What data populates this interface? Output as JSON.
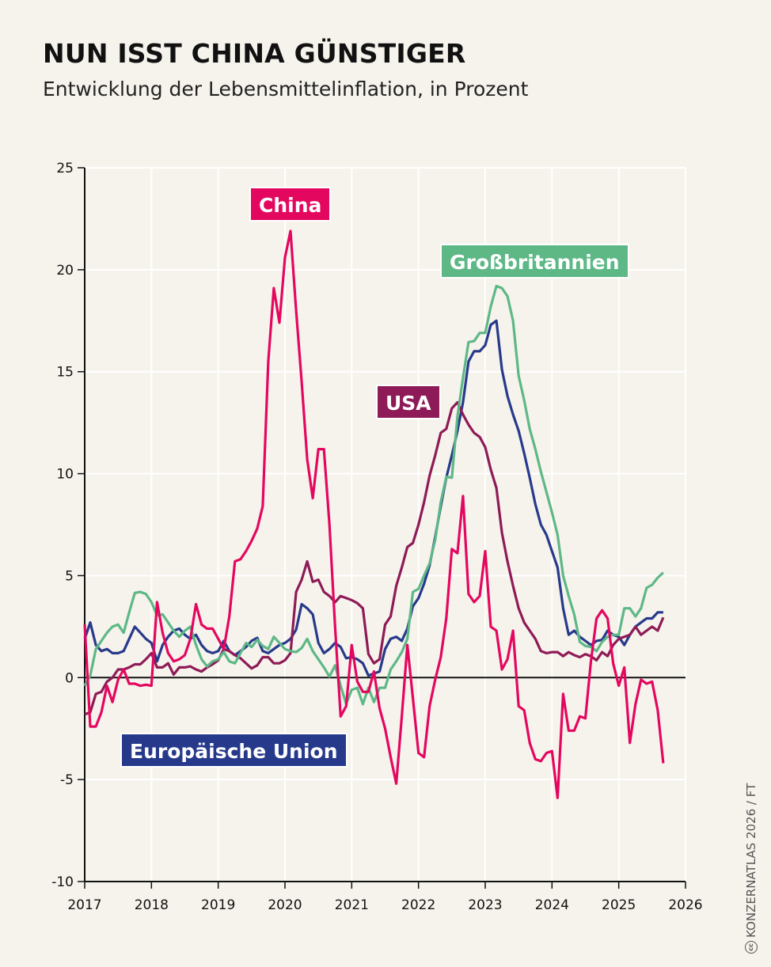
{
  "header": {
    "title": "NUN ISST CHINA GÜNSTIGER",
    "subtitle": "Entwicklung der Lebensmittelinflation, in Prozent"
  },
  "credit": {
    "icon": "creative-commons-icon",
    "text": "KONZERNATLAS 2026 / FT"
  },
  "chart_data": {
    "type": "line",
    "title": "NUN ISST CHINA GÜNSTIGER",
    "subtitle": "Entwicklung der Lebensmittelinflation, in Prozent",
    "xlabel": "",
    "ylabel": "",
    "xlim": [
      2017,
      2026
    ],
    "ylim": [
      -10,
      25
    ],
    "x_ticks": [
      "2017",
      "2018",
      "2019",
      "2020",
      "2021",
      "2022",
      "2023",
      "2024",
      "2025",
      "2026"
    ],
    "y_ticks": [
      "-10",
      "-5",
      "0",
      "5",
      "10",
      "15",
      "20",
      "25"
    ],
    "grid": true,
    "legend": "inline labels",
    "x": [
      "2017-01",
      "2017-02",
      "2017-03",
      "2017-04",
      "2017-05",
      "2017-06",
      "2017-07",
      "2017-08",
      "2017-09",
      "2017-10",
      "2017-11",
      "2017-12",
      "2018-01",
      "2018-02",
      "2018-03",
      "2018-04",
      "2018-05",
      "2018-06",
      "2018-07",
      "2018-08",
      "2018-09",
      "2018-10",
      "2018-11",
      "2018-12",
      "2019-01",
      "2019-02",
      "2019-03",
      "2019-04",
      "2019-05",
      "2019-06",
      "2019-07",
      "2019-08",
      "2019-09",
      "2019-10",
      "2019-11",
      "2019-12",
      "2020-01",
      "2020-02",
      "2020-03",
      "2020-04",
      "2020-05",
      "2020-06",
      "2020-07",
      "2020-08",
      "2020-09",
      "2020-10",
      "2020-11",
      "2020-12",
      "2021-01",
      "2021-02",
      "2021-03",
      "2021-04",
      "2021-05",
      "2021-06",
      "2021-07",
      "2021-08",
      "2021-09",
      "2021-10",
      "2021-11",
      "2021-12",
      "2022-01",
      "2022-02",
      "2022-03",
      "2022-04",
      "2022-05",
      "2022-06",
      "2022-07",
      "2022-08",
      "2022-09",
      "2022-10",
      "2022-11",
      "2022-12",
      "2023-01",
      "2023-02",
      "2023-03",
      "2023-04",
      "2023-05",
      "2023-06",
      "2023-07",
      "2023-08",
      "2023-09",
      "2023-10",
      "2023-11",
      "2023-12",
      "2024-01",
      "2024-02",
      "2024-03",
      "2024-04",
      "2024-05",
      "2024-06",
      "2024-07",
      "2024-08",
      "2024-09",
      "2024-10",
      "2024-11",
      "2024-12",
      "2025-01",
      "2025-02",
      "2025-03",
      "2025-04",
      "2025-05",
      "2025-06",
      "2025-07",
      "2025-08",
      "2025-09"
    ],
    "series": [
      {
        "name": "Europäische Union",
        "color": "#27398B",
        "values": [
          1.9,
          2.7,
          1.6,
          1.3,
          1.4,
          1.2,
          1.2,
          1.3,
          1.9,
          2.5,
          2.2,
          1.9,
          1.7,
          0.8,
          1.6,
          2.0,
          2.3,
          2.4,
          2.1,
          1.9,
          2.1,
          1.6,
          1.3,
          1.2,
          1.3,
          1.8,
          1.3,
          1.1,
          1.3,
          1.5,
          1.8,
          1.95,
          1.3,
          1.2,
          1.4,
          1.6,
          1.7,
          1.9,
          2.35,
          3.6,
          3.4,
          3.1,
          1.7,
          1.2,
          1.4,
          1.7,
          1.5,
          0.95,
          1.0,
          0.9,
          0.7,
          0.1,
          0.2,
          0.3,
          1.4,
          1.9,
          2.0,
          1.8,
          2.4,
          3.5,
          3.9,
          4.6,
          5.5,
          6.9,
          8.4,
          9.8,
          10.9,
          12.1,
          13.5,
          15.5,
          16.0,
          16.0,
          16.3,
          17.3,
          17.5,
          15.1,
          13.8,
          12.9,
          12.1,
          11.0,
          9.8,
          8.5,
          7.5,
          7.0,
          6.2,
          5.4,
          3.4,
          2.1,
          2.3,
          2.0,
          1.8,
          1.6,
          1.8,
          1.85,
          2.3,
          2.1,
          2.0,
          1.6,
          2.1,
          2.5,
          2.7,
          2.9,
          2.9,
          3.2,
          3.2
        ]
      },
      {
        "name": "USA",
        "color": "#8E1B57",
        "values": [
          -1.8,
          -1.7,
          -0.8,
          -0.7,
          -0.2,
          0.0,
          0.4,
          0.4,
          0.5,
          0.65,
          0.65,
          0.9,
          1.2,
          0.5,
          0.5,
          0.7,
          0.15,
          0.5,
          0.5,
          0.55,
          0.4,
          0.3,
          0.5,
          0.65,
          0.85,
          1.4,
          1.3,
          1.1,
          0.95,
          0.7,
          0.45,
          0.6,
          1.0,
          1.0,
          0.7,
          0.7,
          0.85,
          1.2,
          4.2,
          4.8,
          5.7,
          4.7,
          4.8,
          4.2,
          4.0,
          3.7,
          4.0,
          3.9,
          3.8,
          3.65,
          3.4,
          1.15,
          0.7,
          0.9,
          2.6,
          3.0,
          4.5,
          5.4,
          6.4,
          6.6,
          7.5,
          8.6,
          9.9,
          10.9,
          12.0,
          12.2,
          13.2,
          13.5,
          12.9,
          12.4,
          12.0,
          11.8,
          11.3,
          10.2,
          9.3,
          7.1,
          5.7,
          4.5,
          3.4,
          2.7,
          2.3,
          1.9,
          1.3,
          1.2,
          1.25,
          1.25,
          1.05,
          1.25,
          1.1,
          1.0,
          1.15,
          1.05,
          0.85,
          1.25,
          1.05,
          1.6,
          1.9,
          2.0,
          2.1,
          2.5,
          2.1,
          2.3,
          2.5,
          2.3,
          2.95
        ]
      },
      {
        "name": "Großbritannien",
        "color": "#5DB886",
        "values": [
          -0.4,
          0.1,
          1.4,
          1.8,
          2.2,
          2.5,
          2.6,
          2.2,
          3.2,
          4.15,
          4.2,
          4.1,
          3.7,
          3.05,
          3.1,
          2.7,
          2.3,
          2.0,
          2.3,
          2.5,
          1.6,
          0.9,
          0.55,
          0.8,
          0.9,
          1.25,
          0.8,
          0.7,
          1.2,
          1.7,
          1.5,
          1.85,
          1.55,
          1.4,
          2.0,
          1.7,
          1.4,
          1.3,
          1.25,
          1.45,
          1.9,
          1.3,
          0.9,
          0.5,
          0.05,
          0.6,
          -0.4,
          -1.3,
          -0.6,
          -0.5,
          -1.3,
          -0.5,
          -1.2,
          -0.5,
          -0.5,
          0.4,
          0.8,
          1.25,
          1.9,
          4.2,
          4.35,
          5.0,
          5.6,
          6.75,
          8.6,
          9.85,
          9.8,
          12.8,
          14.7,
          16.45,
          16.5,
          16.9,
          16.9,
          18.2,
          19.2,
          19.1,
          18.7,
          17.5,
          14.8,
          13.6,
          12.2,
          11.2,
          10.1,
          9.1,
          8.1,
          7.0,
          5.0,
          4.0,
          3.1,
          1.75,
          1.55,
          1.5,
          1.3,
          1.75,
          2.0,
          2.1,
          2.1,
          3.4,
          3.4,
          3.0,
          3.4,
          4.4,
          4.55,
          4.9,
          5.15
        ]
      },
      {
        "name": "China",
        "color": "#E4075F",
        "values": [
          2.6,
          -2.4,
          -2.4,
          -1.7,
          -0.4,
          -1.2,
          -0.1,
          0.4,
          -0.3,
          -0.3,
          -0.4,
          -0.35,
          -0.4,
          3.7,
          2.2,
          1.2,
          0.8,
          0.9,
          1.1,
          1.9,
          3.6,
          2.6,
          2.4,
          2.4,
          1.9,
          1.4,
          3.0,
          5.7,
          5.8,
          6.2,
          6.7,
          7.3,
          8.4,
          15.5,
          19.1,
          17.4,
          20.6,
          21.9,
          18.0,
          14.5,
          10.7,
          8.8,
          11.2,
          11.2,
          7.5,
          2.5,
          -1.9,
          -1.4,
          1.6,
          -0.2,
          -0.7,
          -0.7,
          0.3,
          -1.5,
          -2.5,
          -3.9,
          -5.2,
          -1.9,
          1.6,
          -1.0,
          -3.7,
          -3.9,
          -1.4,
          -0.1,
          1.0,
          2.9,
          6.3,
          6.1,
          8.9,
          4.1,
          3.7,
          4.0,
          6.2,
          2.5,
          2.3,
          0.4,
          0.9,
          2.3,
          -1.4,
          -1.6,
          -3.2,
          -4.0,
          -4.1,
          -3.7,
          -3.6,
          -5.9,
          -0.8,
          -2.6,
          -2.6,
          -1.9,
          -2.0,
          0.8,
          2.9,
          3.3,
          2.9,
          0.7,
          -0.4,
          0.5,
          -3.2,
          -1.3,
          -0.1,
          -0.3,
          -0.2,
          -1.6,
          -4.2
        ]
      }
    ]
  }
}
